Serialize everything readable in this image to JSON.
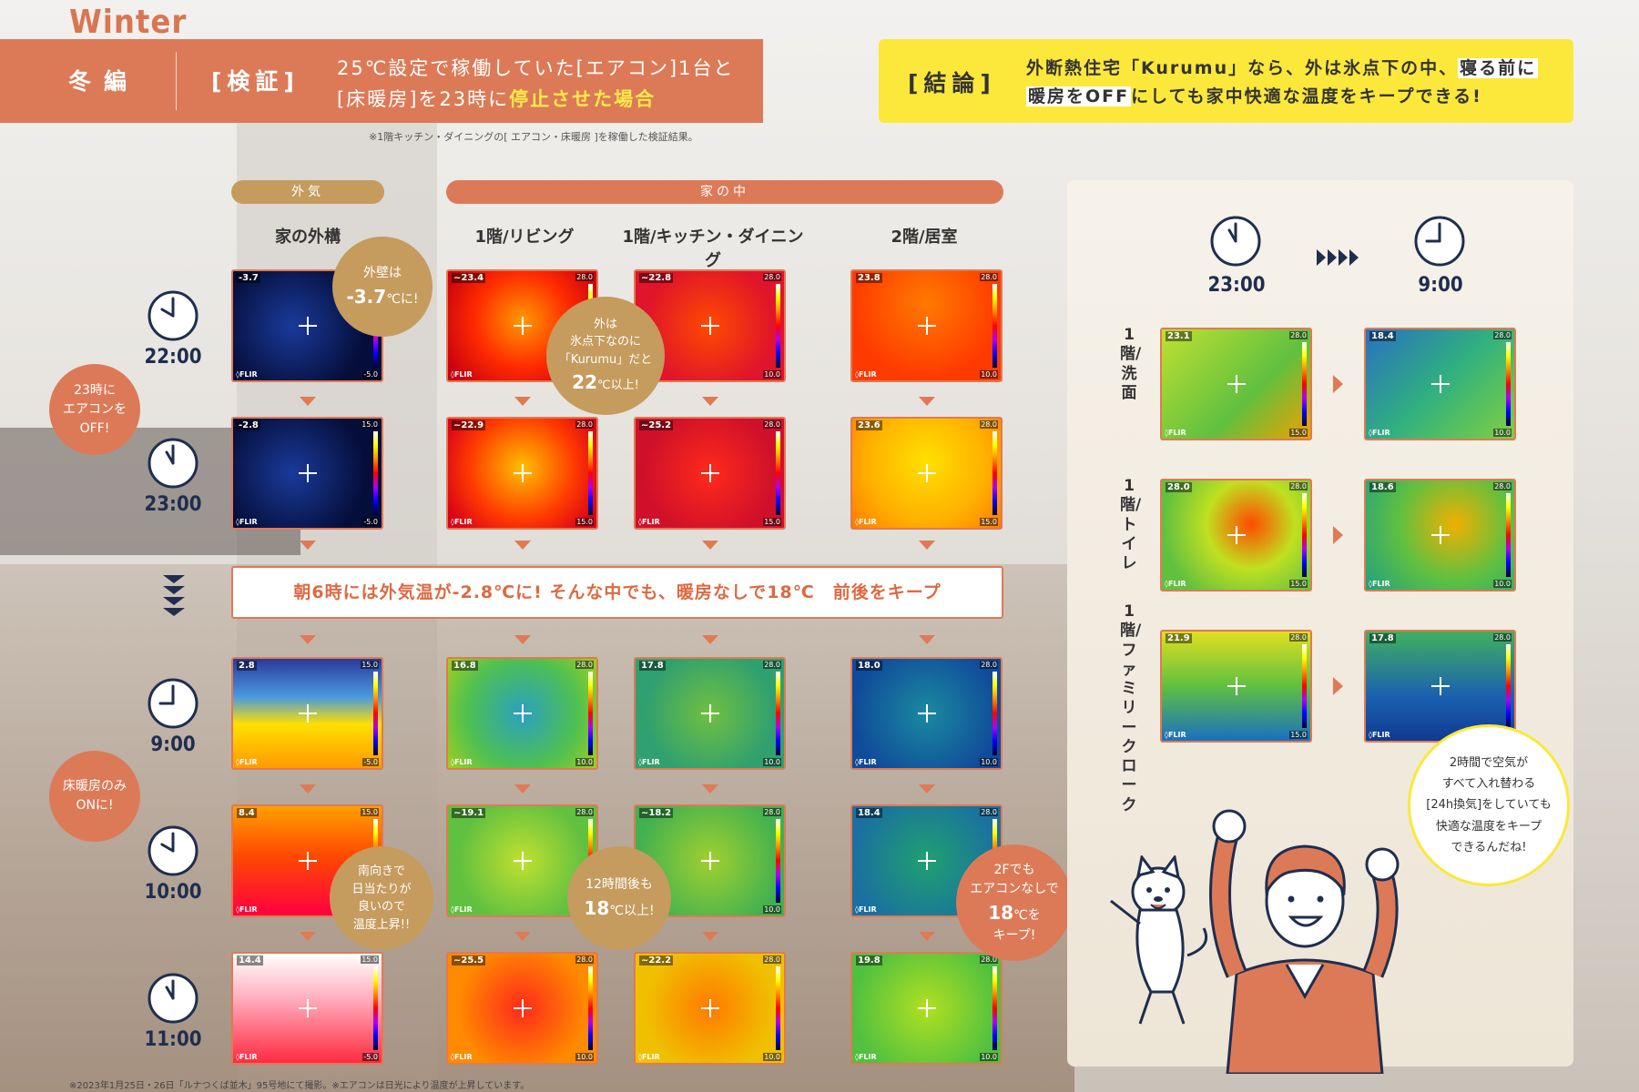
{
  "season_label": "Winter",
  "header": {
    "season": "冬編",
    "tag": "[検証]",
    "line1": "25℃設定で稼働していた[エアコン]1台と",
    "line2_a": "[床暖房]を23時に",
    "line2_b": "停止させた場合",
    "note": "※1階キッチン・ダイニングの[ エアコン・床暖房 ]を稼働した検証結果。"
  },
  "conclusion": {
    "tag": "[結論]",
    "line1_a": "外断熱住宅「Kurumu」なら、外は氷点下の中、",
    "line1_b": "寝る前に",
    "line2_a": "暖房をOFF",
    "line2_b": "にしても家中快適な温度をキープできる!"
  },
  "pills": {
    "outside": "外気",
    "inside": "家の中"
  },
  "columns": [
    "家の外構",
    "1階/リビング",
    "1階/キッチン・ダイニング",
    "2階/居室"
  ],
  "times": [
    "22:00",
    "23:00",
    "9:00",
    "10:00",
    "11:00"
  ],
  "band": "朝6時には外気温が-2.8℃に! そんな中でも、暖房なしで18℃　前後をキープ",
  "thermal": {
    "brand": "◊FLIR",
    "rows": [
      {
        "values": [
          "-3.7",
          "~23.4",
          "~22.8",
          "23.8"
        ],
        "max": [
          "15.0",
          "28.0",
          "28.0",
          "28.0"
        ],
        "min": [
          "-5.0",
          "10.0",
          "10.0",
          "10.0"
        ]
      },
      {
        "values": [
          "-2.8",
          "~22.9",
          "~25.2",
          "23.6"
        ],
        "max": [
          "15.0",
          "28.0",
          "28.0",
          "28.0"
        ],
        "min": [
          "-5.0",
          "15.0",
          "15.0",
          "15.0"
        ]
      },
      {
        "values": [
          "2.8",
          "16.8",
          "17.8",
          "18.0"
        ],
        "max": [
          "15.0",
          "28.0",
          "28.0",
          "28.0"
        ],
        "min": [
          "-5.0",
          "10.0",
          "10.0",
          "10.0"
        ]
      },
      {
        "values": [
          "8.4",
          "~19.1",
          "~18.2",
          "18.4"
        ],
        "max": [
          "15.0",
          "28.0",
          "28.0",
          "28.0"
        ],
        "min": [
          "-5.0",
          "10.0",
          "10.0",
          "10.0"
        ]
      },
      {
        "values": [
          "14.4",
          "~25.5",
          "~22.2",
          "19.8"
        ],
        "max": [
          "15.0",
          "28.0",
          "28.0",
          "28.0"
        ],
        "min": [
          "-5.0",
          "10.0",
          "10.0",
          "10.0"
        ]
      }
    ]
  },
  "bubbles": {
    "wall_a": "外壁は",
    "wall_b": "-3.7",
    "wall_c": "℃に!",
    "out_a": "外は",
    "out_b": "氷点下なのに",
    "out_c": "「Kurumu」だと",
    "out_d": "22",
    "out_e": "℃以上!",
    "ac_a": "23時に",
    "ac_b": "エアコンを",
    "ac_c": "OFF!",
    "floor_a": "床暖房のみ",
    "floor_b": "ONに!",
    "south_a": "南向きで",
    "south_b": "日当たりが",
    "south_c": "良いので",
    "south_d": "温度上昇!!",
    "twelve_a": "12時間後も",
    "twelve_b": "18",
    "twelve_c": "℃以上!",
    "twof_a": "2Fでも",
    "twof_b": "エアコンなしで",
    "twof_c": "18",
    "twof_d": "℃を",
    "twof_e": "キープ!",
    "vent_a": "2時間で空気が",
    "vent_b": "すべて入れ替わる",
    "vent_c": "[24h換気]をしていても",
    "vent_d": "快適な温度をキープ",
    "vent_e": "できるんだね!"
  },
  "right_panel": {
    "time_from": "23:00",
    "time_to": "9:00",
    "rooms": [
      {
        "label": "1階/洗面",
        "before": "23.1",
        "after": "18.4",
        "bmin": "15.0",
        "amin": "10.0"
      },
      {
        "label": "1階/トイレ",
        "before": "28.0",
        "after": "18.6",
        "bmin": "15.0",
        "amin": "10.0"
      },
      {
        "label": "1階/ファミリークローク",
        "before": "21.9",
        "after": "17.8",
        "bmin": "15.0",
        "amin": "10.0"
      }
    ],
    "max": "28.0"
  },
  "footnote": "※2023年1月25日・26日「ルナつくば並木」95号地にて撮影。※エアコンは日光により温度が上昇しています。",
  "colors": {
    "accent": "#dc7a57",
    "brown": "#c59b5e",
    "yellow": "#fbe83a",
    "navy": "#1f2e4f"
  }
}
